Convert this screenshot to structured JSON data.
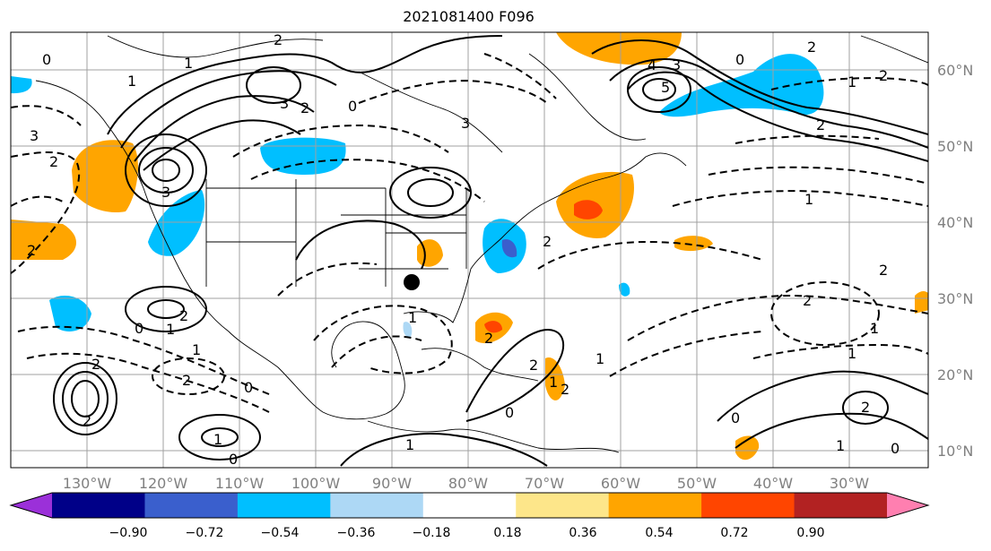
{
  "title": "2021081400 F096",
  "map": {
    "lon_labels": [
      "130°W",
      "120°W",
      "110°W",
      "100°W",
      "90°W",
      "80°W",
      "70°W",
      "60°W",
      "50°W",
      "40°W",
      "30°W"
    ],
    "lat_labels": [
      "60°N",
      "50°N",
      "40°N",
      "30°N",
      "20°N",
      "10°N"
    ],
    "contour_labels": [
      "0",
      "1",
      "1",
      "2",
      "3",
      "2",
      "3",
      "0",
      "3",
      "2",
      "2",
      "3",
      "4",
      "5",
      "3",
      "2",
      "2",
      "1",
      "2",
      "0",
      "1",
      "1",
      "2",
      "2",
      "2",
      "1",
      "1",
      "2",
      "2",
      "0",
      "0",
      "1",
      "2",
      "2",
      "1",
      "0",
      "2",
      "1",
      "2",
      "0",
      "2",
      "0",
      "1",
      "1",
      "1",
      "2",
      "1",
      "0"
    ],
    "marker": "black-dot"
  },
  "colorbar": {
    "ticks": [
      "−0.90",
      "−0.72",
      "−0.54",
      "−0.36",
      "−0.18",
      "0.18",
      "0.36",
      "0.54",
      "0.72",
      "0.90"
    ],
    "colors": [
      "#9b30d9",
      "#000088",
      "#3a5fcd",
      "#00bfff",
      "#add8f5",
      "#ffffff",
      "#fde68a",
      "#ffa500",
      "#ff4500",
      "#b22222",
      "#ff7fb0"
    ]
  }
}
